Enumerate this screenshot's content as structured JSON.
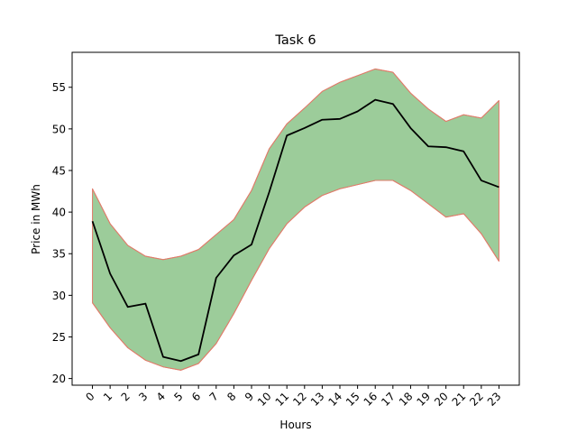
{
  "chart_data": {
    "type": "area",
    "title": "Task 6",
    "xlabel": "Hours",
    "ylabel": "Price in MWh",
    "x": [
      0,
      1,
      2,
      3,
      4,
      5,
      6,
      7,
      8,
      9,
      10,
      11,
      12,
      13,
      14,
      15,
      16,
      17,
      18,
      19,
      20,
      21,
      22,
      23
    ],
    "xlim": [
      -1.15,
      24.15
    ],
    "ylim": [
      19.2,
      59.2
    ],
    "yticks": [
      20,
      25,
      30,
      35,
      40,
      45,
      50,
      55
    ],
    "grid": false,
    "series": [
      {
        "role": "mean",
        "color": "#000000",
        "values": [
          38.9,
          32.6,
          28.6,
          29.0,
          22.6,
          22.1,
          22.9,
          32.1,
          34.8,
          36.1,
          42.4,
          49.2,
          50.1,
          51.1,
          51.2,
          52.1,
          53.5,
          53.0,
          50.1,
          47.9,
          47.8,
          47.3,
          43.8,
          43.0
        ]
      },
      {
        "role": "upper",
        "color": "#e07b6a",
        "values": [
          42.8,
          38.6,
          36.0,
          34.7,
          34.3,
          34.7,
          35.5,
          37.3,
          39.1,
          42.6,
          47.6,
          50.6,
          52.5,
          54.5,
          55.6,
          56.4,
          57.2,
          56.8,
          54.3,
          52.4,
          50.9,
          51.7,
          51.3,
          53.4
        ]
      },
      {
        "role": "lower",
        "color": "#e07b6a",
        "values": [
          29.1,
          26.1,
          23.7,
          22.2,
          21.4,
          21.0,
          21.8,
          24.2,
          27.8,
          31.8,
          35.6,
          38.6,
          40.6,
          42.0,
          42.8,
          43.3,
          43.8,
          43.8,
          42.6,
          41.0,
          39.4,
          39.8,
          37.4,
          34.1
        ]
      }
    ],
    "band_fill_color": "#9ccc9a"
  }
}
